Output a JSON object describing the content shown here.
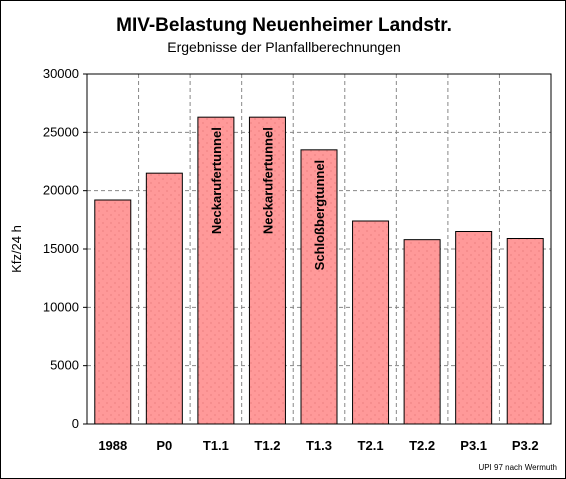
{
  "chart_data": {
    "type": "bar",
    "title": "MIV-Belastung Neuenheimer Landstr.",
    "subtitle": "Ergebnisse der Planfallberechnungen",
    "ylabel": "Kfz/24 h",
    "xlabel": "",
    "ylim": [
      0,
      30000
    ],
    "yticks": [
      0,
      5000,
      10000,
      15000,
      20000,
      25000,
      30000
    ],
    "grid": true,
    "categories": [
      "1988",
      "P0",
      "T1.1",
      "T1.2",
      "T1.3",
      "T2.1",
      "T2.2",
      "P3.1",
      "P3.2"
    ],
    "values": [
      19200,
      21500,
      26300,
      26300,
      23500,
      17400,
      15800,
      16500,
      15900
    ],
    "bar_labels": [
      "",
      "",
      "Neckarufertunnel",
      "Neckarufertunnel",
      "Schloßbergtunnel",
      "",
      "",
      "",
      ""
    ],
    "bar_color": "#ff9999",
    "source_note": "UPI 97 nach Wermuth"
  }
}
